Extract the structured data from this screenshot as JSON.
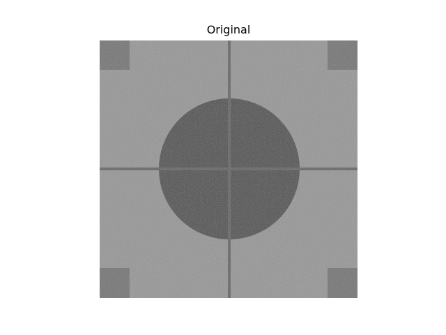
{
  "title": "Original",
  "image": {
    "description_icon": "noisy-test-pattern-image",
    "colors": {
      "background": "#9a9a9a",
      "circle": "#5e5e5e",
      "crosshair": "#6e6e6e",
      "corner_squares": "#787878",
      "noise_light": "#b0b0b0",
      "noise_dark": "#7a7a7a"
    }
  }
}
